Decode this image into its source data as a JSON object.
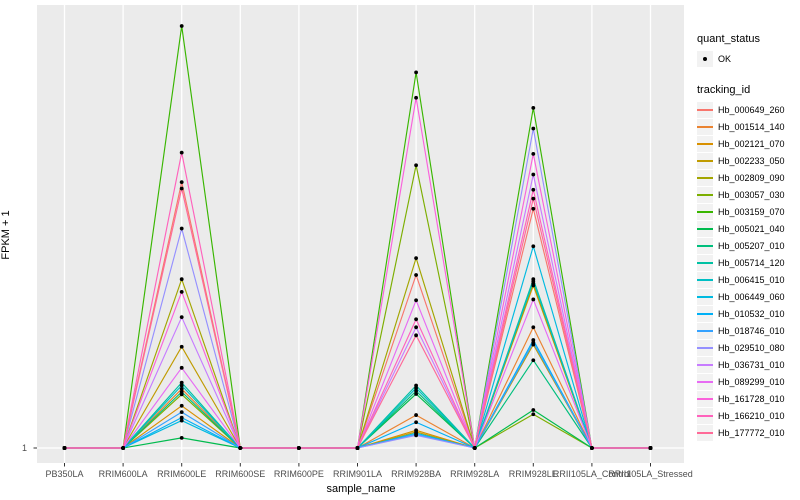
{
  "chart_data": {
    "type": "line",
    "title": "",
    "xlabel": "sample_name",
    "ylabel": "FPKM + 1",
    "x_categories": [
      "PB350LA",
      "RRIM600LA",
      "RRIM600LE",
      "RRIM600SE",
      "RRIM600PE",
      "RRIM901LA",
      "RRIM928BA",
      "RRIM928LA",
      "RRIM928LE",
      "RRII105LA_Control",
      "RRII105LA_Stressed"
    ],
    "y_axis": {
      "tick_label": "1",
      "scale_note": "only the value 1 is labeled; peaks shown as relative heights"
    },
    "values_are": "relative height above the FPKM+1 = 1 baseline (1.0 = tallest peak, at RRIM600LE)",
    "layout": {
      "grid": "on",
      "legend_position": "right",
      "panel_bg": "#EBEBEB",
      "grid_color": "#FFFFFF",
      "key_bg": "#F2F2F2",
      "point_color": "#000000",
      "tick_text_color": "#4D4D4D"
    },
    "legend": {
      "quant_status": {
        "title": "quant_status",
        "items": [
          {
            "label": "OK",
            "marker": "point",
            "color": "#000000"
          }
        ]
      },
      "tracking_id": {
        "title": "tracking_id"
      }
    },
    "series": [
      {
        "name": "Hb_000649_260",
        "color": "#F8766D",
        "rel_heights": [
          0,
          0,
          0.63,
          0,
          0,
          0,
          0.41,
          0,
          0.567,
          0,
          0
        ]
      },
      {
        "name": "Hb_001514_140",
        "color": "#EA8331",
        "rel_heights": [
          0,
          0,
          0.14,
          0,
          0,
          0,
          0.078,
          0,
          0.286,
          0,
          0
        ]
      },
      {
        "name": "Hb_002121_070",
        "color": "#D89000",
        "rel_heights": [
          0,
          0,
          0.1,
          0,
          0,
          0,
          0.042,
          0,
          0.385,
          0,
          0
        ]
      },
      {
        "name": "Hb_002233_050",
        "color": "#C09B00",
        "rel_heights": [
          0,
          0,
          0.24,
          0,
          0,
          0,
          0.038,
          0,
          0.245,
          0,
          0
        ]
      },
      {
        "name": "Hb_002809_090",
        "color": "#A3A500",
        "rel_heights": [
          0,
          0,
          0.4,
          0,
          0,
          0,
          0.45,
          0,
          0.39,
          0,
          0
        ]
      },
      {
        "name": "Hb_003057_030",
        "color": "#7CAE00",
        "rel_heights": [
          0,
          0,
          0.127,
          0,
          0,
          0,
          0.67,
          0,
          0.08,
          0,
          0
        ]
      },
      {
        "name": "Hb_003159_070",
        "color": "#39B600",
        "rel_heights": [
          0,
          0,
          1.0,
          0,
          0,
          0,
          0.89,
          0,
          0.806,
          0,
          0
        ]
      },
      {
        "name": "Hb_005021_040",
        "color": "#00BB4E",
        "rel_heights": [
          0,
          0,
          0.024,
          0,
          0,
          0,
          0.128,
          0,
          0.09,
          0,
          0
        ]
      },
      {
        "name": "Hb_005207_010",
        "color": "#00BF7D",
        "rel_heights": [
          0,
          0,
          0.133,
          0,
          0,
          0,
          0.135,
          0,
          0.208,
          0,
          0
        ]
      },
      {
        "name": "Hb_005714_120",
        "color": "#00C1A3",
        "rel_heights": [
          0,
          0,
          0.155,
          0,
          0,
          0,
          0.148,
          0,
          0.4,
          0,
          0
        ]
      },
      {
        "name": "Hb_006415_010",
        "color": "#00BFC4",
        "rel_heights": [
          0,
          0,
          0.148,
          0,
          0,
          0,
          0.142,
          0,
          0.395,
          0,
          0
        ]
      },
      {
        "name": "Hb_006449_060",
        "color": "#00BAE0",
        "rel_heights": [
          0,
          0,
          0.065,
          0,
          0,
          0,
          0.035,
          0,
          0.478,
          0,
          0
        ]
      },
      {
        "name": "Hb_010532_010",
        "color": "#00B0F6",
        "rel_heights": [
          0,
          0,
          0.072,
          0,
          0,
          0,
          0.061,
          0,
          0.256,
          0,
          0
        ]
      },
      {
        "name": "Hb_018746_010",
        "color": "#35A2FF",
        "rel_heights": [
          0,
          0,
          0.085,
          0,
          0,
          0,
          0.032,
          0,
          0.25,
          0,
          0
        ]
      },
      {
        "name": "Hb_029510_080",
        "color": "#9590FF",
        "rel_heights": [
          0,
          0,
          0.52,
          0,
          0,
          0,
          0.03,
          0,
          0.757,
          0,
          0
        ]
      },
      {
        "name": "Hb_036731_010",
        "color": "#C77CFF",
        "rel_heights": [
          0,
          0,
          0.31,
          0,
          0,
          0,
          0.286,
          0,
          0.648,
          0,
          0
        ]
      },
      {
        "name": "Hb_089299_010",
        "color": "#E76BF3",
        "rel_heights": [
          0,
          0,
          0.19,
          0,
          0,
          0,
          0.35,
          0,
          0.352,
          0,
          0
        ]
      },
      {
        "name": "Hb_161728_010",
        "color": "#FA62DB",
        "rel_heights": [
          0,
          0,
          0.37,
          0,
          0,
          0,
          0.83,
          0,
          0.697,
          0,
          0
        ]
      },
      {
        "name": "Hb_166210_010",
        "color": "#FF62BC",
        "rel_heights": [
          0,
          0,
          0.7,
          0,
          0,
          0,
          0.305,
          0,
          0.612,
          0,
          0
        ]
      },
      {
        "name": "Hb_177772_010",
        "color": "#FF6A98",
        "rel_heights": [
          0,
          0,
          0.615,
          0,
          0,
          0,
          0.267,
          0,
          0.591,
          0,
          0
        ]
      }
    ]
  }
}
